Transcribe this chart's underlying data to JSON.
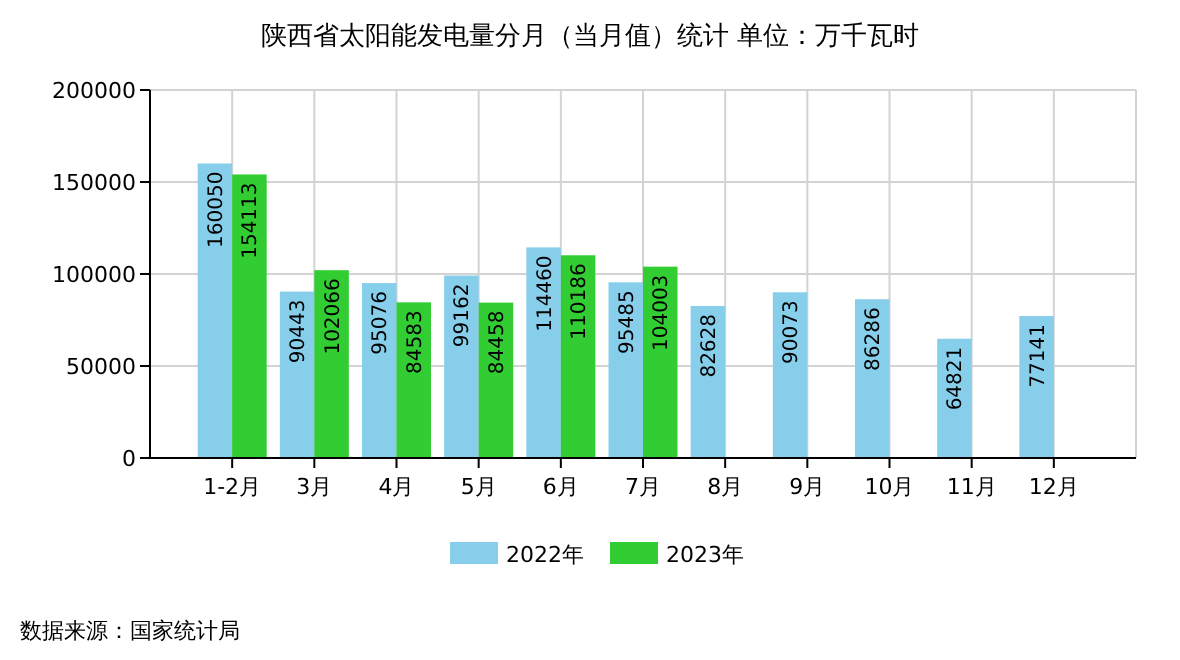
{
  "chart_data": {
    "type": "bar",
    "title": "陕西省太阳能发电量分月（当月值）统计  单位：万千瓦时",
    "categories": [
      "1-2月",
      "3月",
      "4月",
      "5月",
      "6月",
      "7月",
      "8月",
      "9月",
      "10月",
      "11月",
      "12月"
    ],
    "series": [
      {
        "name": "2022年",
        "color": "#87ceeb",
        "values": [
          160050,
          90443,
          95076,
          99162,
          114460,
          95485,
          82628,
          90073,
          86286,
          64821,
          77141
        ]
      },
      {
        "name": "2023年",
        "color": "#32cd32",
        "values": [
          154113,
          102066,
          84583,
          84458,
          110186,
          104003,
          null,
          null,
          null,
          null,
          null
        ]
      }
    ],
    "ylim": [
      0,
      200000
    ],
    "yticks": [
      0,
      50000,
      100000,
      150000,
      200000
    ],
    "grid": true,
    "legend": "bottom",
    "data_labels": true,
    "annotations": [
      "数据来源：国家统计局"
    ]
  }
}
